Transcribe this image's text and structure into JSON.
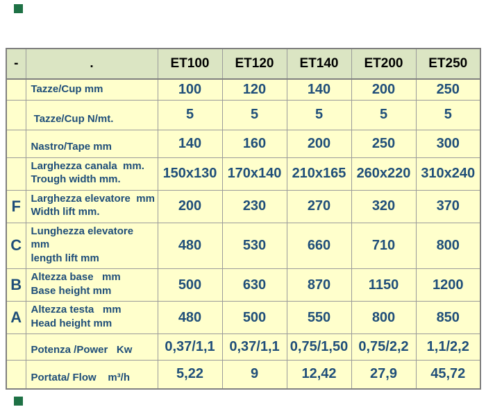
{
  "theme": {
    "header_bg": "#dbe5c3",
    "header_text": "#000000",
    "body_bg": "#ffffcc",
    "value_text": "#1f4e79",
    "border_gray": "#9a9a9a",
    "marker_green": "#1e7145"
  },
  "decorations": {
    "top_left_marker": "green-square",
    "bottom_left_marker": "green-square"
  },
  "table": {
    "header": {
      "cells": [
        "-",
        ".",
        "ET100",
        "ET120",
        "ET140",
        "ET200",
        "ET250"
      ]
    },
    "body": {
      "rows": [
        {
          "letter": "",
          "label_line1": "Tazze/Cup mm",
          "label_line2": "",
          "values": [
            "100",
            "120",
            "140",
            "200",
            "250"
          ]
        },
        {
          "letter": "",
          "label_line1": " Tazze/Cup N/mt.",
          "label_line2": "",
          "values": [
            "5",
            "5",
            "5",
            "5",
            "5"
          ]
        },
        {
          "letter": "",
          "label_line1": "Nastro/Tape mm",
          "label_line2": "",
          "values": [
            "140",
            "160",
            "200",
            "250",
            "300"
          ]
        },
        {
          "letter": "",
          "label_line1": "Larghezza canala  mm.",
          "label_line2": "Trough width mm.",
          "values": [
            "150x130",
            "170x140",
            "210x165",
            "260x220",
            "310x240"
          ]
        },
        {
          "letter": "F",
          "label_line1": "Larghezza elevatore  mm",
          "label_line2": "Width lift mm.",
          "values": [
            "200",
            "230",
            "270",
            "320",
            "370"
          ]
        },
        {
          "letter": "C",
          "label_line1": "Lunghezza elevatore   mm",
          "label_line2": "length lift mm",
          "values": [
            "480",
            "530",
            "660",
            "710",
            "800"
          ]
        },
        {
          "letter": "B",
          "label_line1": "Altezza base   mm",
          "label_line2": "Base height mm",
          "values": [
            "500",
            "630",
            "870",
            "1150",
            "1200"
          ]
        },
        {
          "letter": "A",
          "label_line1": "Altezza testa   mm",
          "label_line2": "Head height mm",
          "values": [
            "480",
            "500",
            "550",
            "800",
            "850"
          ]
        },
        {
          "letter": "",
          "label_line1": "Potenza /Power   Kw",
          "label_line2": "",
          "values": [
            "0,37/1,1",
            "0,37/1,1",
            "0,75/1,50",
            "0,75/2,2",
            "1,1/2,2"
          ]
        },
        {
          "letter": "",
          "label_line1": "Portata/ Flow    m³/h",
          "label_line2": "",
          "values": [
            "5,22",
            "9",
            "12,42",
            "27,9",
            "45,72"
          ]
        }
      ]
    }
  }
}
